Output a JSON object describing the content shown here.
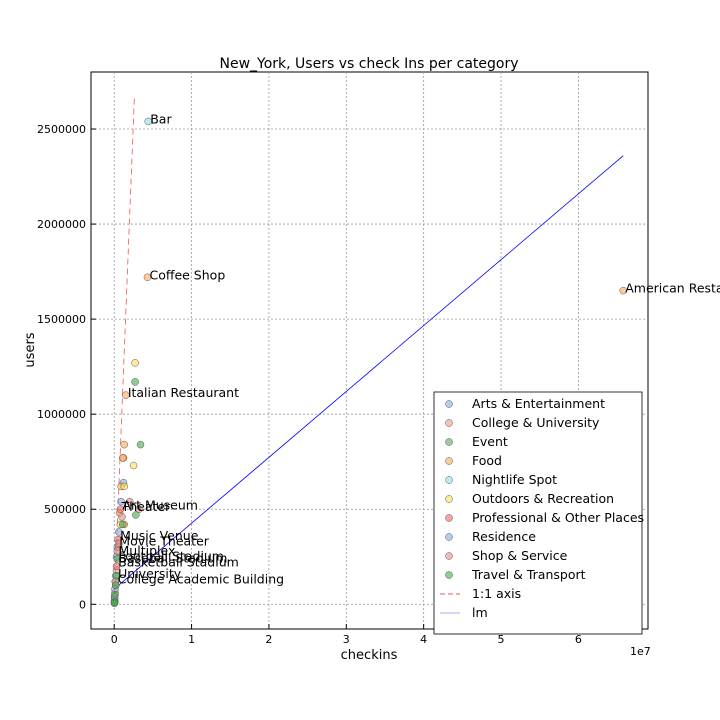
{
  "chart_data": {
    "type": "scatter",
    "title": "New_York, Users vs check Ins per category",
    "xlabel": "checkins",
    "ylabel": "users",
    "x_offset_label": "1e7",
    "xlim": [
      -3000000,
      69000000
    ],
    "ylim": [
      -130000,
      2800000
    ],
    "x_ticks": [
      0,
      10000000,
      20000000,
      30000000,
      40000000,
      50000000,
      60000000
    ],
    "x_tick_labels": [
      "0",
      "1",
      "2",
      "3",
      "4",
      "5",
      "6"
    ],
    "y_ticks": [
      0,
      500000,
      1000000,
      1500000,
      2000000,
      2500000
    ],
    "y_tick_labels": [
      "0",
      "500000",
      "1000000",
      "1500000",
      "2000000",
      "2500000"
    ],
    "grid": true,
    "legend_position": "lower-right",
    "series": [
      {
        "name": "Arts & Entertainment",
        "color": "#88aadd",
        "points": [
          [
            1200000,
            640000
          ],
          [
            900000,
            540000
          ],
          [
            600000,
            380000
          ],
          [
            400000,
            300000
          ],
          [
            300000,
            250000
          ],
          [
            200000,
            150000
          ],
          [
            150000,
            120000
          ]
        ]
      },
      {
        "name": "College & University",
        "color": "#ee9988",
        "points": [
          [
            150000,
            120000
          ],
          [
            300000,
            180000
          ],
          [
            200000,
            100000
          ],
          [
            100000,
            60000
          ],
          [
            50000,
            30000
          ]
        ]
      },
      {
        "name": "Event",
        "color": "#55aa55",
        "points": [
          [
            50000,
            20000
          ],
          [
            80000,
            10000
          ],
          [
            30000,
            5000
          ]
        ]
      },
      {
        "name": "Food",
        "color": "#ffaa55",
        "points": [
          [
            65800000,
            1650000
          ],
          [
            4300000,
            1720000
          ],
          [
            1500000,
            1100000
          ],
          [
            1300000,
            840000
          ],
          [
            1200000,
            770000
          ],
          [
            1100000,
            770000
          ],
          [
            1300000,
            420000
          ],
          [
            700000,
            480000
          ],
          [
            600000,
            300000
          ],
          [
            900000,
            620000
          ]
        ]
      },
      {
        "name": "Nightlife Spot",
        "color": "#88ddee",
        "points": [
          [
            4400000,
            2540000
          ]
        ]
      },
      {
        "name": "Outdoors & Recreation",
        "color": "#ffdd55",
        "points": [
          [
            2700000,
            1270000
          ],
          [
            2500000,
            730000
          ],
          [
            1300000,
            620000
          ],
          [
            800000,
            420000
          ]
        ]
      },
      {
        "name": "Professional & Other Places",
        "color": "#ee6666",
        "points": [
          [
            800000,
            500000
          ],
          [
            500000,
            340000
          ],
          [
            300000,
            200000
          ]
        ]
      },
      {
        "name": "Residence",
        "color": "#88aadd",
        "points": [
          [
            100000,
            80000
          ],
          [
            50000,
            40000
          ]
        ]
      },
      {
        "name": "Shop & Service",
        "color": "#ee8888",
        "points": [
          [
            3200000,
            500000
          ],
          [
            2000000,
            540000
          ],
          [
            1000000,
            460000
          ],
          [
            600000,
            320000
          ],
          [
            400000,
            280000
          ]
        ]
      },
      {
        "name": "Travel & Transport",
        "color": "#44aa44",
        "points": [
          [
            2700000,
            1170000
          ],
          [
            3400000,
            840000
          ],
          [
            2800000,
            470000
          ],
          [
            1100000,
            420000
          ],
          [
            400000,
            240000
          ],
          [
            300000,
            150000
          ],
          [
            200000,
            100000
          ],
          [
            100000,
            50000
          ],
          [
            30000,
            10000
          ]
        ]
      }
    ],
    "reference_lines": [
      {
        "name": "1:1 axis",
        "style": "dashed",
        "color": "#ee5555",
        "from": [
          0,
          0
        ],
        "to": [
          2600000,
          2660000
        ]
      },
      {
        "name": "lm",
        "style": "solid",
        "color": "#0000ff",
        "from": [
          0,
          80000
        ],
        "to": [
          65800000,
          2360000
        ]
      }
    ],
    "annotations": [
      {
        "text": "Bar",
        "x": 4400000,
        "y": 2540000
      },
      {
        "text": "Coffee Shop",
        "x": 4300000,
        "y": 1720000
      },
      {
        "text": "American Restau",
        "x": 65800000,
        "y": 1650000
      },
      {
        "text": "Italian Restaurant",
        "x": 1500000,
        "y": 1100000
      },
      {
        "text": "Art Museum",
        "x": 800000,
        "y": 510000
      },
      {
        "text": "Theater",
        "x": 700000,
        "y": 500000
      },
      {
        "text": "Music Venue",
        "x": 500000,
        "y": 350000
      },
      {
        "text": "Movie Theater",
        "x": 400000,
        "y": 320000
      },
      {
        "text": "Multiplex",
        "x": 300000,
        "y": 270000
      },
      {
        "text": "Baseball Stadium",
        "x": 300000,
        "y": 230000
      },
      {
        "text": "Basketball Stadium",
        "x": 250000,
        "y": 210000
      },
      {
        "text": "Football Stadium",
        "x": 300000,
        "y": 240000
      },
      {
        "text": "University",
        "x": 250000,
        "y": 150000
      },
      {
        "text": "College Academic Building",
        "x": 200000,
        "y": 120000
      }
    ]
  }
}
